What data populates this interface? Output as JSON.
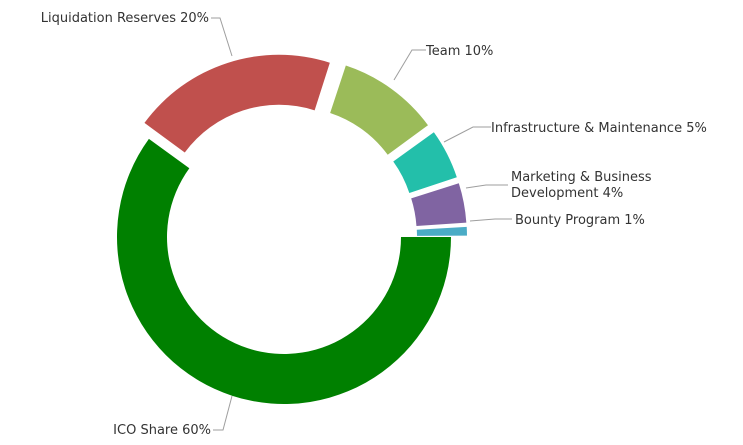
{
  "chart_data": {
    "type": "pie",
    "style": "donut",
    "unit": "%",
    "slices": [
      {
        "label": "ICO Share 60%",
        "name": "ICO Share",
        "value": 60,
        "color": "#008000",
        "exploded": false
      },
      {
        "label": "Liquidation Reserves 20%",
        "name": "Liquidation Reserves",
        "value": 20,
        "color": "#c0504d",
        "exploded": true
      },
      {
        "label": "Team 10%",
        "name": "Team",
        "value": 10,
        "color": "#9bbb59",
        "exploded": true
      },
      {
        "label": "Infrastructure & Maintenance 5%",
        "name": "Infrastructure & Maintenance",
        "value": 5,
        "color": "#23bfaa",
        "exploded": true
      },
      {
        "label": [
          "Marketing & Business",
          "Development 4%"
        ],
        "name": "Marketing & Business Development",
        "value": 4,
        "color": "#8064a2",
        "exploded": true
      },
      {
        "label": "Bounty Program 1%",
        "name": "Bounty Program",
        "value": 1,
        "color": "#4bacc6",
        "exploded": true
      }
    ]
  }
}
